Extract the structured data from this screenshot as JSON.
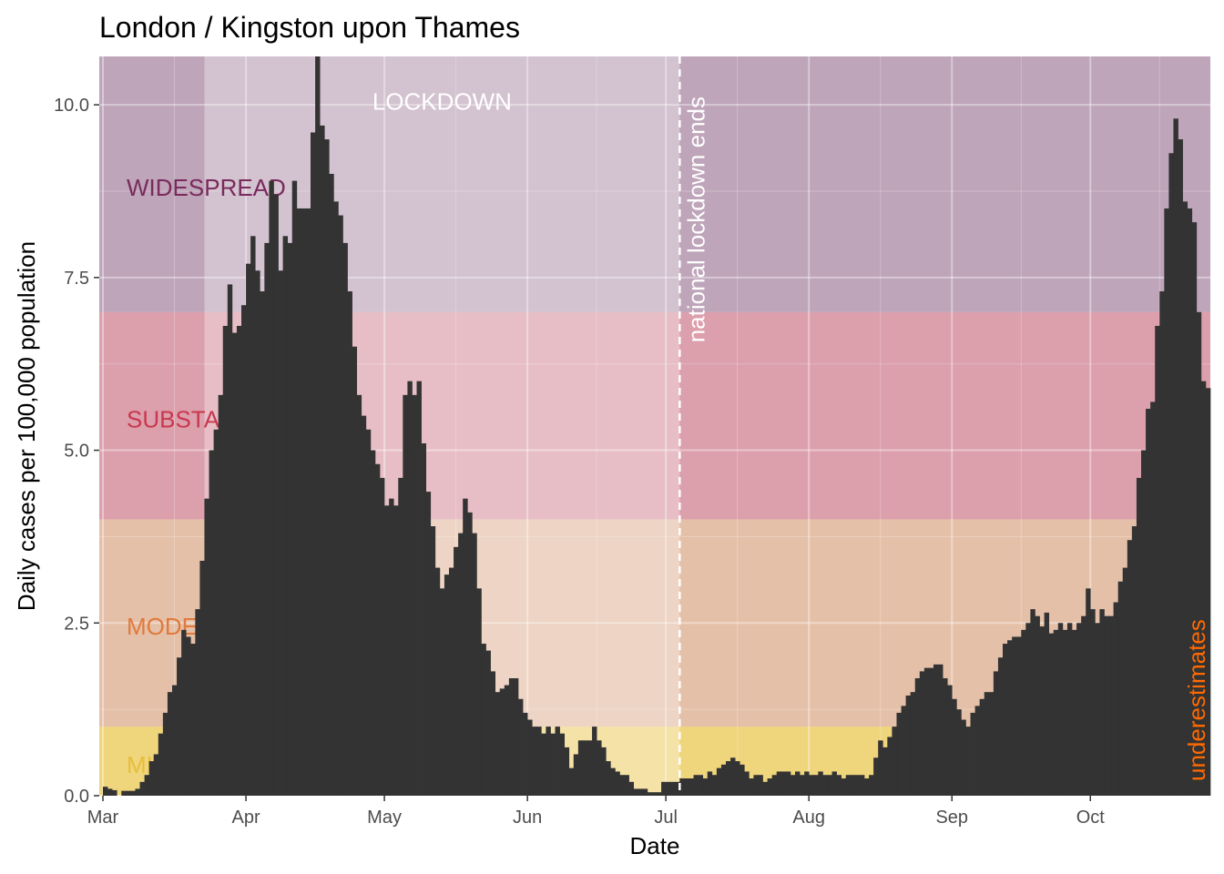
{
  "chart_data": {
    "type": "bar",
    "title": "London / Kingston upon Thames",
    "xlabel": "Date",
    "ylabel": "Daily cases per 100,000 population",
    "ylim": [
      0,
      10.7
    ],
    "yticks": [
      0,
      2.5,
      5,
      7.5,
      10
    ],
    "ytick_labels": [
      "0.0",
      "2.5",
      "5.0",
      "7.5",
      "10.0"
    ],
    "x_start_date": "2020-03-01",
    "xticks": [
      {
        "date": "2020-03-01",
        "label": "Mar"
      },
      {
        "date": "2020-04-01",
        "label": "Apr"
      },
      {
        "date": "2020-05-01",
        "label": "May"
      },
      {
        "date": "2020-06-01",
        "label": "Jun"
      },
      {
        "date": "2020-07-01",
        "label": "Jul"
      },
      {
        "date": "2020-08-01",
        "label": "Aug"
      },
      {
        "date": "2020-09-01",
        "label": "Sep"
      },
      {
        "date": "2020-10-01",
        "label": "Oct"
      }
    ],
    "grid": true,
    "values": [
      0.13,
      0.1,
      0.08,
      0.0,
      0.07,
      0.07,
      0.07,
      0.1,
      0.2,
      0.3,
      0.5,
      0.6,
      0.9,
      1.2,
      1.5,
      1.6,
      2.0,
      2.4,
      2.3,
      2.2,
      2.7,
      3.4,
      4.3,
      5.0,
      5.3,
      5.8,
      6.8,
      7.4,
      6.7,
      6.8,
      7.1,
      7.7,
      8.1,
      7.6,
      7.3,
      8.0,
      8.9,
      8.7,
      7.6,
      8.1,
      8.0,
      8.9,
      8.5,
      8.5,
      8.5,
      9.6,
      10.7,
      9.7,
      9.5,
      9.0,
      8.6,
      8.4,
      8.0,
      7.3,
      6.5,
      5.8,
      5.5,
      5.3,
      5.0,
      4.8,
      4.6,
      4.2,
      4.3,
      4.2,
      4.6,
      5.8,
      6.0,
      5.8,
      6.0,
      5.1,
      4.4,
      3.9,
      3.3,
      3.0,
      3.2,
      3.3,
      3.6,
      3.8,
      4.3,
      4.1,
      3.8,
      3.0,
      2.2,
      2.1,
      1.8,
      1.5,
      1.55,
      1.6,
      1.7,
      1.7,
      1.4,
      1.2,
      1.1,
      1.0,
      1.0,
      0.9,
      1.0,
      0.9,
      1.0,
      0.9,
      0.7,
      0.4,
      0.6,
      0.8,
      0.8,
      0.8,
      1.0,
      0.8,
      0.7,
      0.5,
      0.4,
      0.35,
      0.3,
      0.3,
      0.2,
      0.1,
      0.1,
      0.1,
      0.05,
      0.05,
      0.05,
      0.2,
      0.2,
      0.2,
      0.2,
      0.25,
      0.25,
      0.25,
      0.3,
      0.3,
      0.25,
      0.35,
      0.3,
      0.4,
      0.45,
      0.5,
      0.55,
      0.5,
      0.45,
      0.35,
      0.25,
      0.3,
      0.3,
      0.2,
      0.25,
      0.3,
      0.35,
      0.35,
      0.35,
      0.3,
      0.35,
      0.3,
      0.35,
      0.3,
      0.3,
      0.35,
      0.3,
      0.3,
      0.35,
      0.3,
      0.25,
      0.3,
      0.3,
      0.3,
      0.3,
      0.25,
      0.3,
      0.55,
      0.8,
      0.7,
      0.85,
      1.0,
      1.2,
      1.3,
      1.45,
      1.5,
      1.7,
      1.8,
      1.85,
      1.85,
      1.9,
      1.9,
      1.7,
      1.6,
      1.4,
      1.25,
      1.1,
      1.0,
      1.2,
      1.3,
      1.4,
      1.5,
      1.5,
      1.8,
      2.0,
      2.2,
      2.25,
      2.3,
      2.3,
      2.4,
      2.5,
      2.7,
      2.6,
      2.45,
      2.65,
      2.35,
      2.4,
      2.5,
      2.4,
      2.5,
      2.4,
      2.5,
      2.6,
      3.0,
      2.7,
      2.5,
      2.7,
      2.6,
      2.6,
      2.8,
      3.1,
      3.3,
      3.7,
      3.9,
      4.6,
      5.0,
      5.6,
      5.7,
      6.8,
      7.3,
      8.5,
      9.3,
      9.8,
      9.5,
      8.6,
      8.5,
      8.3,
      7.0,
      6.0,
      5.9
    ],
    "bar_color": "#333333",
    "bands": [
      {
        "name": "MINOR",
        "from": 0,
        "to": 1,
        "color": "#f0d060",
        "label_color": "#e8be3a"
      },
      {
        "name": "MODERATE",
        "from": 1,
        "to": 4,
        "color": "#e4b597",
        "label_color": "#e07a3c"
      },
      {
        "name": "SUBSTANTIAL",
        "from": 4,
        "to": 7,
        "color": "#d88c9c",
        "label_color": "#c8384e"
      },
      {
        "name": "WIDESPREAD",
        "from": 7,
        "to": 10.7,
        "color": "#b393ac",
        "label_color": "#7a2a5c"
      }
    ],
    "lockdown": {
      "label": "LOCKDOWN",
      "start": "2020-03-23",
      "end": "2020-07-04"
    },
    "lockdown_end_line": {
      "date": "2020-07-04",
      "label": "national lockdown ends"
    },
    "underestimates": {
      "label": "underestimates",
      "label_color": "#ff6a00"
    }
  }
}
